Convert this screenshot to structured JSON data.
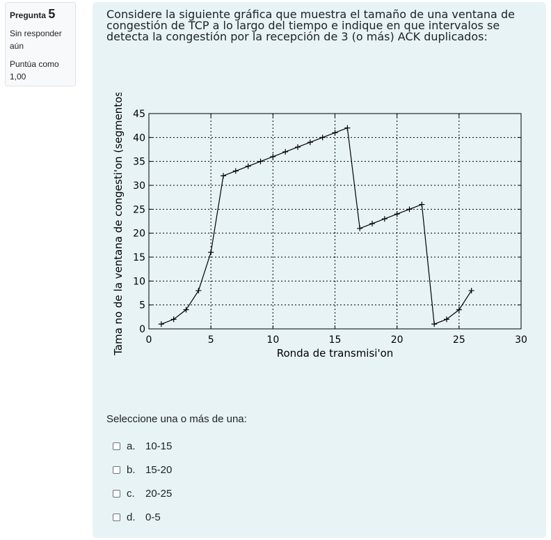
{
  "info": {
    "question_label": "Pregunta",
    "question_number": "5",
    "status": "Sin responder aún",
    "grade": "Puntúa como 1,00"
  },
  "question": {
    "text": "Considere la siguiente gráfica que muestra el tamaño de una ventana de congestión de TCP a lo largo del tiempo e indique en que intervalos se detecta la congestión por la recepción de 3 (o más) ACK duplicados:",
    "prompt": "Seleccione una o más de una:",
    "options": [
      {
        "label": "a.",
        "text": "10-15"
      },
      {
        "label": "b.",
        "text": "15-20"
      },
      {
        "label": "c.",
        "text": "20-25"
      },
      {
        "label": "d.",
        "text": "0-5"
      }
    ]
  },
  "chart_data": {
    "type": "line",
    "xlabel": "Ronda de transmisi'on",
    "ylabel": "Tama no de la ventana de congesti'on (segmentos)",
    "xlim": [
      0,
      30
    ],
    "ylim": [
      0,
      45
    ],
    "xticks": [
      0,
      5,
      10,
      15,
      20,
      25,
      30
    ],
    "yticks": [
      0,
      5,
      10,
      15,
      20,
      25,
      30,
      35,
      40,
      45
    ],
    "grid": true,
    "series": [
      {
        "x": [
          1,
          2,
          3,
          4,
          5,
          6,
          7,
          8,
          9,
          10,
          11,
          12,
          13,
          14,
          15,
          16,
          17,
          18,
          19,
          20,
          21,
          22,
          23,
          24,
          25,
          26
        ],
        "y": [
          1,
          2,
          4,
          8,
          16,
          32,
          33,
          34,
          35,
          36,
          37,
          38,
          39,
          40,
          41,
          42,
          21,
          22,
          23,
          24,
          25,
          26,
          1,
          2,
          4,
          8
        ]
      }
    ]
  }
}
